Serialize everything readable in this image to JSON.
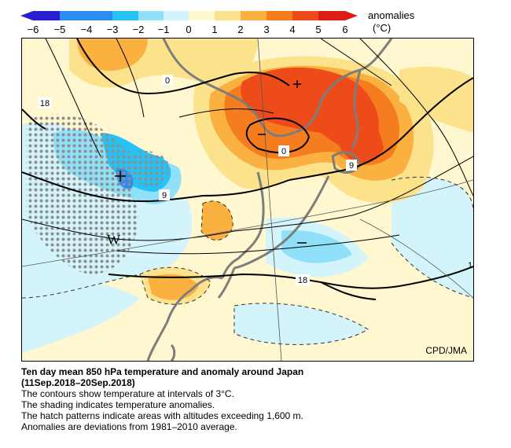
{
  "legend": {
    "title": "anomalies",
    "unit": "(°C)",
    "ticks": [
      "−6",
      "−5",
      "−4",
      "−3",
      "−2",
      "−1",
      "0",
      "1",
      "2",
      "3",
      "4",
      "5",
      "6"
    ],
    "colors": {
      "le_-5": "#2a1fd0",
      "-5_-3": "#2c8cf0",
      "-3_-2": "#27c2f5",
      "-2_-1": "#8fe0f8",
      "-1_0": "#d4f4fb",
      "0_1": "#fff7cf",
      "1_2": "#fde28c",
      "2_3": "#fbb140",
      "3_4": "#f57d1f",
      "4_5": "#ee4b1a",
      "ge_5": "#dd1d14"
    }
  },
  "map": {
    "contour_labels": [
      "0",
      "18",
      "9",
      "0",
      "9",
      "18",
      "9",
      "18",
      "1"
    ],
    "hatch_label": "W",
    "credit": "CPD/JMA"
  },
  "caption": {
    "title": "Ten day mean 850 hPa temperature and anomaly around Japan",
    "period": "(11Sep.2018–20Sep.2018)",
    "lines": [
      "The contours show temperature at intervals of 3°C.",
      "The shading indicates temperature anomalies.",
      "The hatch patterns indicate areas with altitudes exceeding 1,600 m.",
      "Anomalies are deviations from 1981–2010 average."
    ]
  }
}
